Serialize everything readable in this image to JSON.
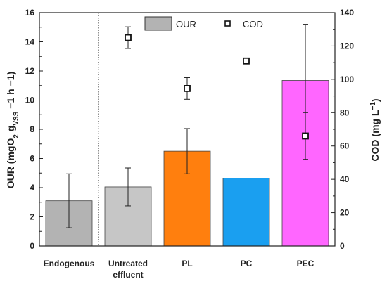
{
  "chart_data": {
    "type": "bar",
    "categories": [
      "Endogenous",
      "Untreated\neffluent",
      "PL",
      "PC",
      "PEC"
    ],
    "series": [
      {
        "name": "OUR",
        "axis": "left",
        "values": [
          3.1,
          4.05,
          6.5,
          4.65,
          11.35
        ],
        "errors": [
          1.85,
          1.3,
          1.55,
          0,
          3.85
        ],
        "colors": [
          "#b3b3b3",
          "#c6c6c6",
          "#ff7f0e",
          "#1a9ff0",
          "#ff66ff"
        ]
      },
      {
        "name": "COD",
        "axis": "right",
        "marker": "square-open",
        "values": [
          null,
          125,
          94.5,
          111,
          66
        ],
        "errors": [
          null,
          6.5,
          6.5,
          0,
          14
        ]
      }
    ],
    "y_left": {
      "label": "OUR (mgO2 gVSS −1 h −1)",
      "label_main": "OUR (mgO",
      "label_sub2": "2",
      "label_g": " g",
      "label_subvss": "VSS",
      "label_tail": " −1 h −1)",
      "ylim": [
        0,
        16
      ],
      "ticks": [
        "0",
        "2",
        "4",
        "6",
        "8",
        "10",
        "12",
        "14",
        "16"
      ]
    },
    "y_right": {
      "label": "COD (mg L−1)",
      "label_main": "COD (mg L",
      "label_sup": "−1",
      "label_close": ")",
      "ylim": [
        0,
        140
      ],
      "ticks": [
        "0",
        "20",
        "40",
        "60",
        "80",
        "100",
        "120",
        "140"
      ]
    },
    "separator_after_category": 0,
    "legend": {
      "position": "top-center",
      "entries": [
        "OUR",
        "COD"
      ]
    }
  }
}
